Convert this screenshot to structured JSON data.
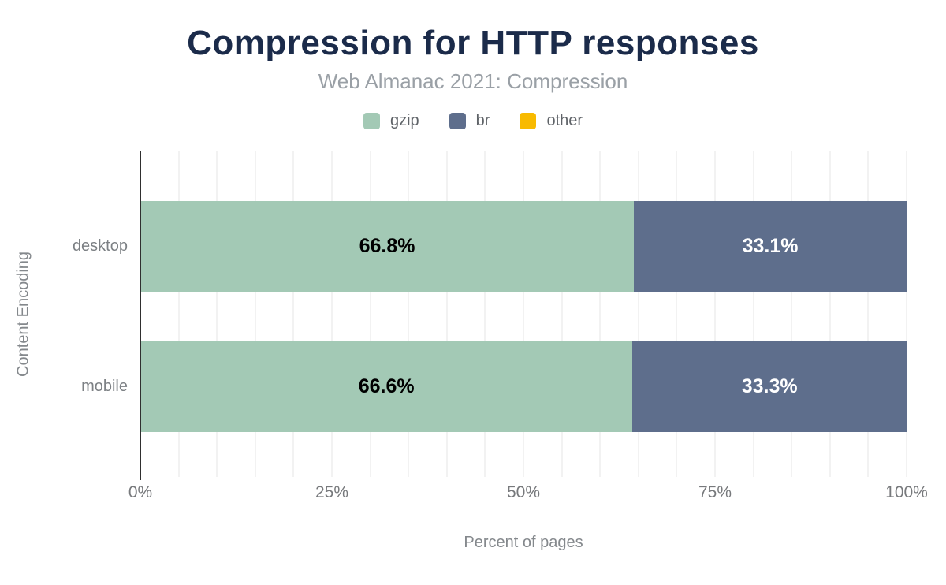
{
  "chart_data": {
    "type": "bar",
    "orientation": "horizontal",
    "stacked": true,
    "title": "Compression for HTTP responses",
    "subtitle": "Web Almanac 2021: Compression",
    "xlabel": "Percent of pages",
    "ylabel": "Content Encoding",
    "categories": [
      "desktop",
      "mobile"
    ],
    "series": [
      {
        "name": "gzip",
        "color": "#a3c9b5",
        "label_color": "#000000",
        "values": [
          66.8,
          66.6
        ]
      },
      {
        "name": "br",
        "color": "#5e6e8c",
        "label_color": "#ffffff",
        "values": [
          33.1,
          33.3
        ]
      },
      {
        "name": "other",
        "color": "#f8ba00",
        "label_color": "#000000",
        "values": [
          0,
          0
        ]
      }
    ],
    "xlim": [
      0,
      100
    ],
    "x_ticks": [
      "0%",
      "25%",
      "50%",
      "75%",
      "100%"
    ],
    "grid": {
      "show": true,
      "interval_percent": 5
    },
    "legend_position": "top"
  },
  "colors": {
    "title": "#1b2b4a",
    "subtitle": "#9aa0a6",
    "legend_text": "#5f6368",
    "axis_title_text": "#84888c",
    "category_text": "#7c8084",
    "tick_text": "#77797c",
    "gridline": "#f2f2f2",
    "axis_line": "#2f2f2f",
    "background": "#ffffff"
  }
}
